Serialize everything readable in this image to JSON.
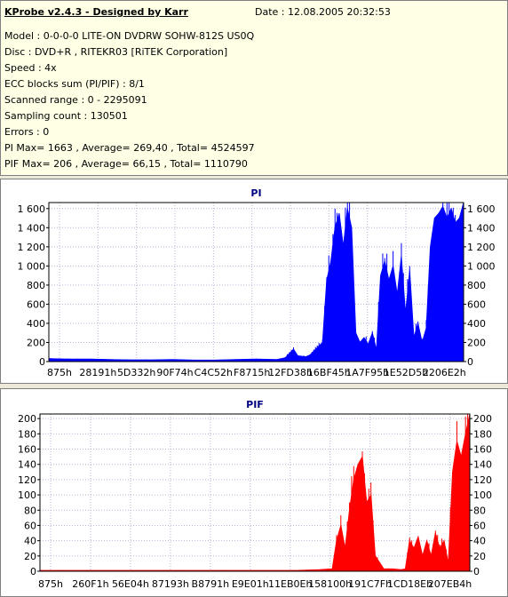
{
  "info": {
    "title": "KProbe v2.4.3 - Designed by Karr",
    "date": "Date : 12.08.2005 20:32:53",
    "lines": [
      "Model : 0-0-0-0 LITE-ON DVDRW SOHW-812S  US0Q",
      "Disc : DVD+R , RITEKR03 [RiTEK Corporation]",
      "Speed : 4x",
      "ECC blocks sum (PI/PIF) : 8/1",
      "Scanned range : 0 - 2295091",
      "Sampling count : 130501",
      "Errors : 0",
      "PI Max= 1663 , Average= 269,40 , Total= 4524597",
      "PIF Max= 206 , Average= 66,15 , Total= 1110790"
    ]
  },
  "chart_data": [
    {
      "type": "area",
      "title": "PI",
      "color": "#0000ff",
      "ylim": [
        0,
        1663
      ],
      "yticks": [
        0,
        200,
        400,
        600,
        800,
        1000,
        1200,
        1400,
        1600
      ],
      "ytick_labels": [
        "0",
        "200",
        "400",
        "600",
        "800",
        "1 000",
        "1 200",
        "1 400",
        "1 600"
      ],
      "xtick_labels": [
        "875h",
        "28191h",
        "5D332h",
        "90F74h",
        "C4C52h",
        "F8715h",
        "12FD38h",
        "16BF45h",
        "1A7F95h",
        "1E52D5h",
        "2206E2h"
      ],
      "grid": true,
      "x": [
        0,
        0.05,
        0.1,
        0.15,
        0.2,
        0.25,
        0.3,
        0.35,
        0.4,
        0.45,
        0.5,
        0.55,
        0.57,
        0.59,
        0.6,
        0.62,
        0.63,
        0.66,
        0.67,
        0.68,
        0.69,
        0.7,
        0.71,
        0.72,
        0.73,
        0.74,
        0.75,
        0.76,
        0.77,
        0.78,
        0.79,
        0.8,
        0.81,
        0.82,
        0.83,
        0.84,
        0.85,
        0.86,
        0.87,
        0.88,
        0.89,
        0.9,
        0.91,
        0.92,
        0.93,
        0.94,
        0.95,
        0.96,
        0.97,
        0.98,
        0.99,
        1.0
      ],
      "values": [
        30,
        25,
        25,
        20,
        18,
        18,
        20,
        15,
        15,
        20,
        25,
        20,
        40,
        130,
        60,
        50,
        70,
        200,
        850,
        1050,
        1400,
        1550,
        1200,
        1600,
        1400,
        300,
        200,
        250,
        180,
        300,
        120,
        900,
        1050,
        850,
        1000,
        700,
        1100,
        500,
        950,
        250,
        400,
        200,
        350,
        1200,
        1500,
        1550,
        1620,
        1500,
        1600,
        1450,
        1500,
        1663
      ]
    },
    {
      "type": "area",
      "title": "PIF",
      "color": "#ff0000",
      "ylim": [
        0,
        206
      ],
      "yticks": [
        0,
        20,
        40,
        60,
        80,
        100,
        120,
        140,
        160,
        180,
        200
      ],
      "ytick_labels": [
        "0",
        "20",
        "40",
        "60",
        "80",
        "100",
        "120",
        "140",
        "160",
        "180",
        "200"
      ],
      "xtick_labels": [
        "875h",
        "260F1h",
        "56E04h",
        "87193h",
        "B8791h",
        "E9E01h",
        "11EB0Eh",
        "158100h",
        "191C7Fh",
        "1CD18Eh",
        "207EB4h"
      ],
      "grid": true,
      "x": [
        0,
        0.1,
        0.2,
        0.3,
        0.4,
        0.5,
        0.6,
        0.65,
        0.68,
        0.69,
        0.7,
        0.71,
        0.72,
        0.73,
        0.74,
        0.75,
        0.76,
        0.77,
        0.78,
        0.8,
        0.82,
        0.84,
        0.85,
        0.86,
        0.87,
        0.88,
        0.89,
        0.9,
        0.91,
        0.92,
        0.93,
        0.94,
        0.95,
        0.96,
        0.97,
        0.98,
        0.99,
        1.0
      ],
      "values": [
        1,
        1,
        1,
        1,
        1,
        1,
        1,
        2,
        3,
        40,
        60,
        30,
        80,
        120,
        140,
        150,
        90,
        100,
        20,
        3,
        3,
        2,
        3,
        40,
        30,
        45,
        20,
        40,
        20,
        50,
        30,
        40,
        10,
        130,
        170,
        150,
        180,
        206
      ]
    }
  ]
}
